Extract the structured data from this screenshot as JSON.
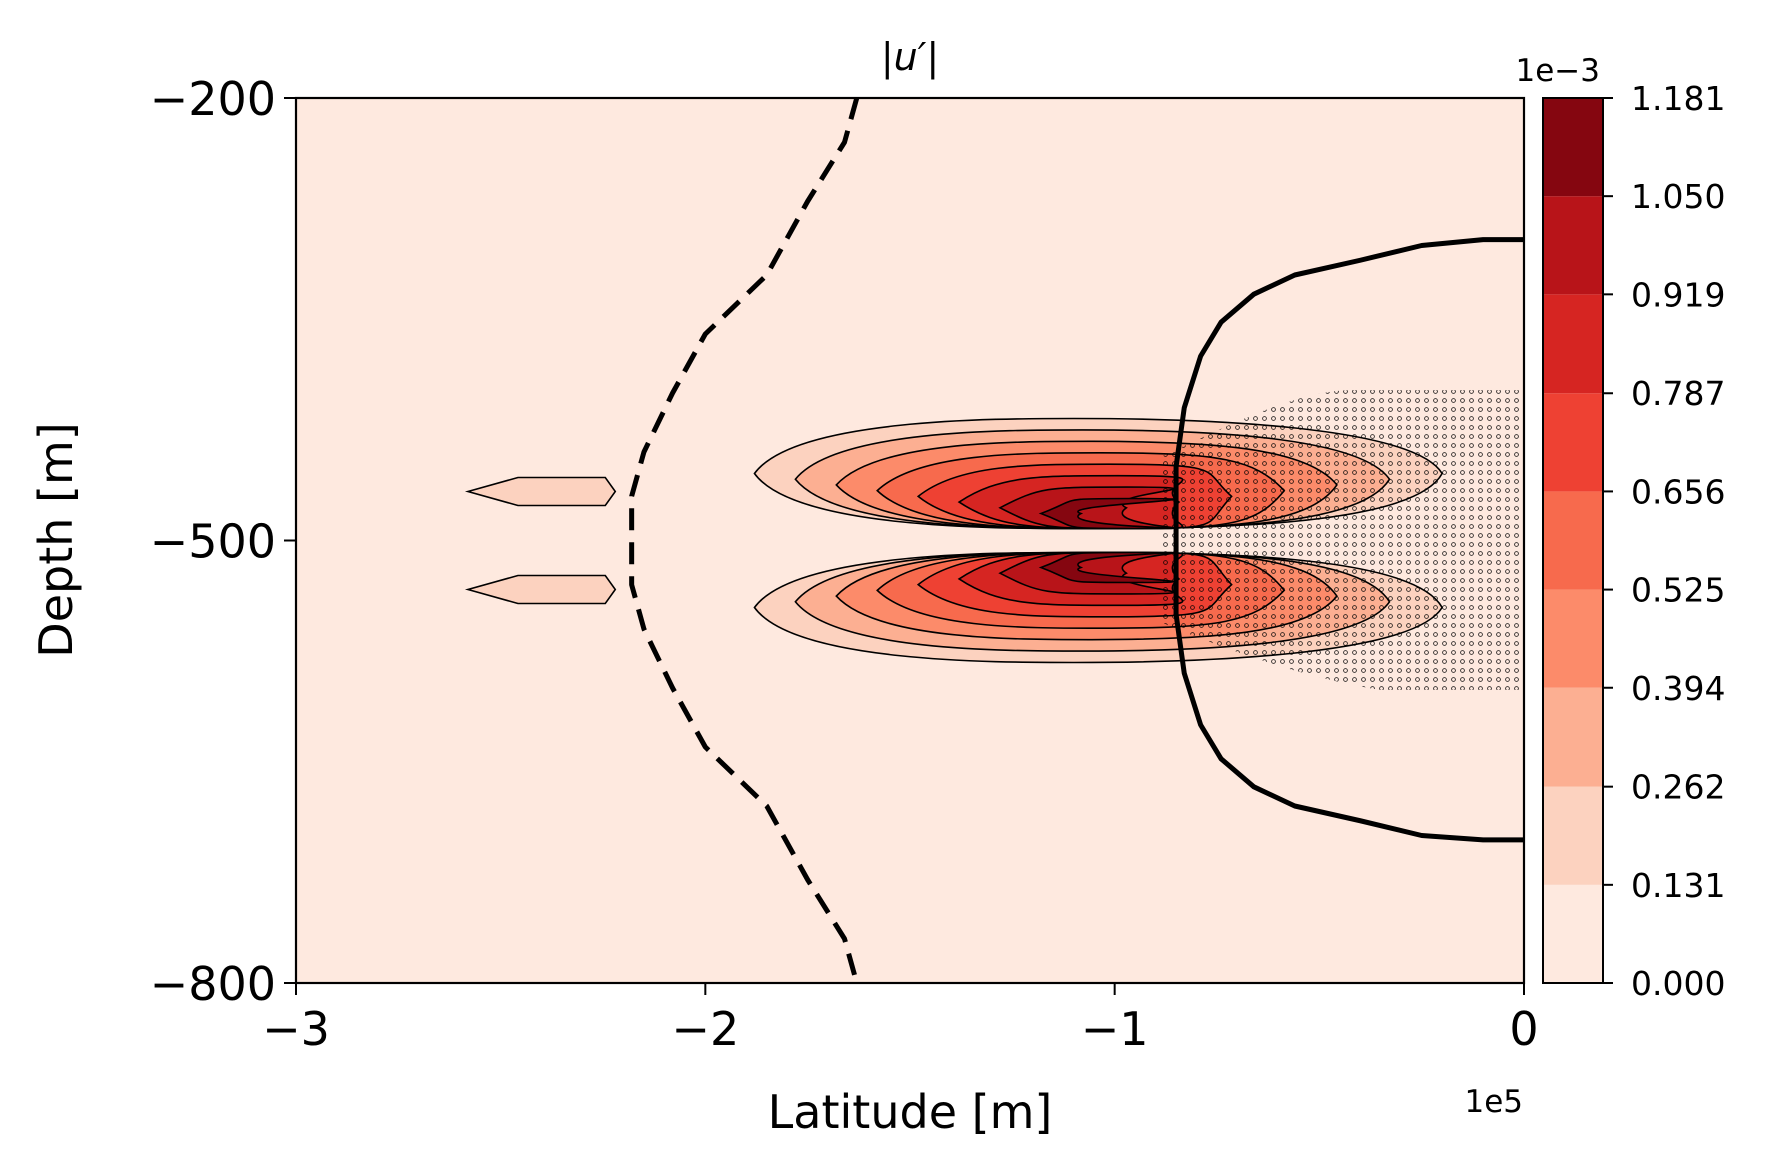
{
  "chart_data": {
    "type": "contourf",
    "title": "|u′|",
    "xlabel": "Latitude [m]",
    "ylabel": "Depth [m]",
    "x_offset_label": "1e5",
    "xlim": [
      -300000,
      0
    ],
    "ylim": [
      -800,
      -200
    ],
    "x_ticks": [
      -300000,
      -200000,
      -100000,
      0
    ],
    "x_tick_labels": [
      "−3",
      "−2",
      "−1",
      "0"
    ],
    "y_ticks": [
      -200,
      -500,
      -800
    ],
    "y_tick_labels": [
      "−200",
      "−500",
      "−800"
    ],
    "colormap": "Reds",
    "colorbar": {
      "offset_label": "1e−3",
      "levels": [
        0.0,
        0.131,
        0.262,
        0.394,
        0.525,
        0.656,
        0.787,
        0.919,
        1.05,
        1.181
      ],
      "tick_labels": [
        "0.000",
        "0.131",
        "0.262",
        "0.394",
        "0.525",
        "0.656",
        "0.787",
        "0.919",
        "1.050",
        "1.181"
      ],
      "colors": [
        "#fee9df",
        "#fcd2bf",
        "#fcaf92",
        "#fc8b6a",
        "#f76a4d",
        "#ee4133",
        "#d62522",
        "#b81419",
        "#850610"
      ]
    },
    "lobe_level_colors": [
      "#fcd2bf",
      "#fcaf92",
      "#fc8b6a",
      "#f76a4d",
      "#ee4133",
      "#d62522",
      "#b81419",
      "#850610"
    ],
    "overlay_contours": [
      {
        "style": "dashed",
        "points": [
          [
            -163000,
            -200
          ],
          [
            -166000,
            -230
          ],
          [
            -175000,
            -270
          ],
          [
            -185000,
            -320
          ],
          [
            -200000,
            -360
          ],
          [
            -208000,
            -400
          ],
          [
            -215000,
            -440
          ],
          [
            -218000,
            -470
          ],
          [
            -218000,
            -500
          ],
          [
            -218000,
            -530
          ],
          [
            -215000,
            -560
          ],
          [
            -208000,
            -600
          ],
          [
            -200000,
            -640
          ],
          [
            -185000,
            -680
          ],
          [
            -175000,
            -730
          ],
          [
            -166000,
            -770
          ],
          [
            -163000,
            -800
          ]
        ]
      },
      {
        "style": "solid",
        "points": [
          [
            0,
            -296
          ],
          [
            -10000,
            -296
          ],
          [
            -25000,
            -300
          ],
          [
            -40000,
            -310
          ],
          [
            -56000,
            -320
          ],
          [
            -66000,
            -333
          ],
          [
            -74000,
            -352
          ],
          [
            -79000,
            -375
          ],
          [
            -83000,
            -410
          ],
          [
            -85000,
            -450
          ],
          [
            -85000,
            -500
          ],
          [
            -85000,
            -550
          ],
          [
            -83000,
            -590
          ],
          [
            -79000,
            -625
          ],
          [
            -74000,
            -648
          ],
          [
            -66000,
            -667
          ],
          [
            -56000,
            -680
          ],
          [
            -40000,
            -690
          ],
          [
            -25000,
            -700
          ],
          [
            -10000,
            -703
          ],
          [
            0,
            -703
          ]
        ]
      }
    ],
    "stippled_region": {
      "x_range": [
        -90000,
        0
      ],
      "depth_range": [
        -400,
        -600
      ],
      "note": "significance dots"
    }
  }
}
